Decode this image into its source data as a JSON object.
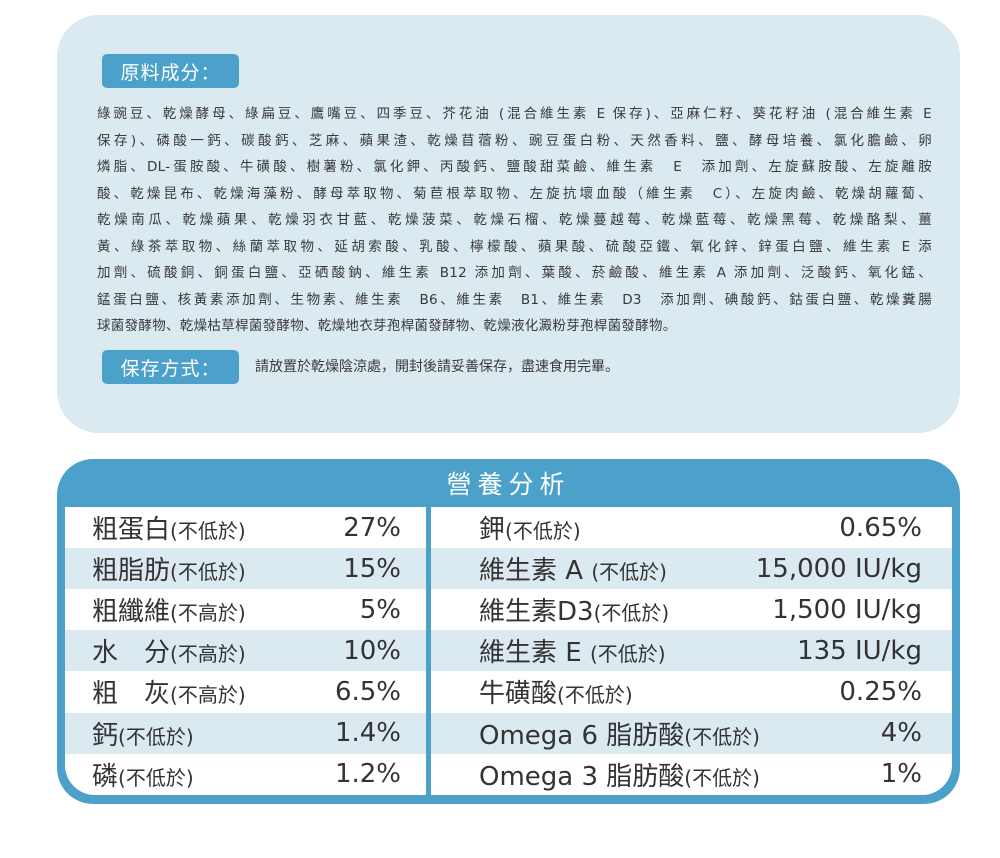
{
  "ingredients": {
    "label": "原料成分：",
    "lines": [
      "綠豌豆、乾燥酵母、綠扁豆、鷹嘴豆、四季豆、芥花油 (混合維生素 E 保存)、亞麻仁籽、葵花籽油 (混合維生素 E",
      "保存)、磷酸一鈣、碳酸鈣、芝麻、蘋果渣、乾燥苜蓿粉、豌豆蛋白粉、天然香料、鹽、酵母培養、氯化膽鹼、卵",
      "燐脂、DL-蛋胺酸、牛磺酸、樹薯粉、氯化鉀、丙酸鈣、鹽酸甜菜鹼、維生素　E　添加劑、左旋蘇胺酸、左旋離胺",
      "酸、乾燥昆布、乾燥海藻粉、酵母萃取物、菊苣根萃取物、左旋抗壞血酸（維生素　C）、左旋肉鹼、乾燥胡蘿蔔、",
      "乾燥南瓜、乾燥蘋果、乾燥羽衣甘藍、乾燥菠菜、乾燥石榴、乾燥蔓越莓、乾燥藍莓、乾燥黑莓、乾燥酪梨、薑",
      "黃、綠茶萃取物、絲蘭萃取物、延胡索酸、乳酸、檸檬酸、蘋果酸、硫酸亞鐵、氧化鋅、鋅蛋白鹽、維生素 E 添",
      "加劑、硫酸銅、銅蛋白鹽、亞硒酸鈉、維生素 B12 添加劑、葉酸、菸鹼酸、維生素 A 添加劑、泛酸鈣、氧化錳、",
      "錳蛋白鹽、核黃素添加劑、生物素、維生素　B6、維生素　B1、維生素　D3　添加劑、碘酸鈣、鈷蛋白鹽、乾燥糞腸",
      "球菌發酵物、乾燥枯草桿菌發酵物、乾燥地衣芽孢桿菌發酵物、乾燥液化澱粉芽孢桿菌發酵物。"
    ]
  },
  "storage": {
    "label": "保存方式：",
    "text": "請放置於乾燥陰涼處，開封後請妥善保存，盡速食用完畢。"
  },
  "nutrition": {
    "title": "營養分析",
    "left": [
      {
        "name": "粗蛋白",
        "qualifier": "(不低於)",
        "value": "27%"
      },
      {
        "name": "粗脂肪",
        "qualifier": "(不低於)",
        "value": "15%"
      },
      {
        "name": "粗纖維",
        "qualifier": "(不高於)",
        "value": "5%"
      },
      {
        "name": "水　分",
        "qualifier": "(不高於)",
        "value": "10%"
      },
      {
        "name": "粗　灰",
        "qualifier": "(不高於)",
        "value": "6.5%"
      },
      {
        "name": "鈣",
        "qualifier": "(不低於)",
        "value": "1.4%"
      },
      {
        "name": "磷",
        "qualifier": "(不低於)",
        "value": "1.2%"
      }
    ],
    "right": [
      {
        "name": "鉀",
        "qualifier": "(不低於)",
        "value": "0.65%"
      },
      {
        "name": "維生素 A ",
        "qualifier": "(不低於)",
        "value": "15,000 IU/kg"
      },
      {
        "name": "維生素D3",
        "qualifier": "(不低於)",
        "value": "1,500 IU/kg"
      },
      {
        "name": "維生素 E ",
        "qualifier": "(不低於)",
        "value": "135 IU/kg"
      },
      {
        "name": "牛磺酸",
        "qualifier": "(不低於)",
        "value": "0.25%"
      },
      {
        "name": "Omega 6 脂肪酸",
        "qualifier": "(不低於)",
        "value": "4%"
      },
      {
        "name": "Omega 3 脂肪酸",
        "qualifier": "(不低於)",
        "value": "1%"
      }
    ]
  },
  "colors": {
    "accent_blue": "#4ba1ca",
    "light_blue": "#dbe9f0"
  }
}
